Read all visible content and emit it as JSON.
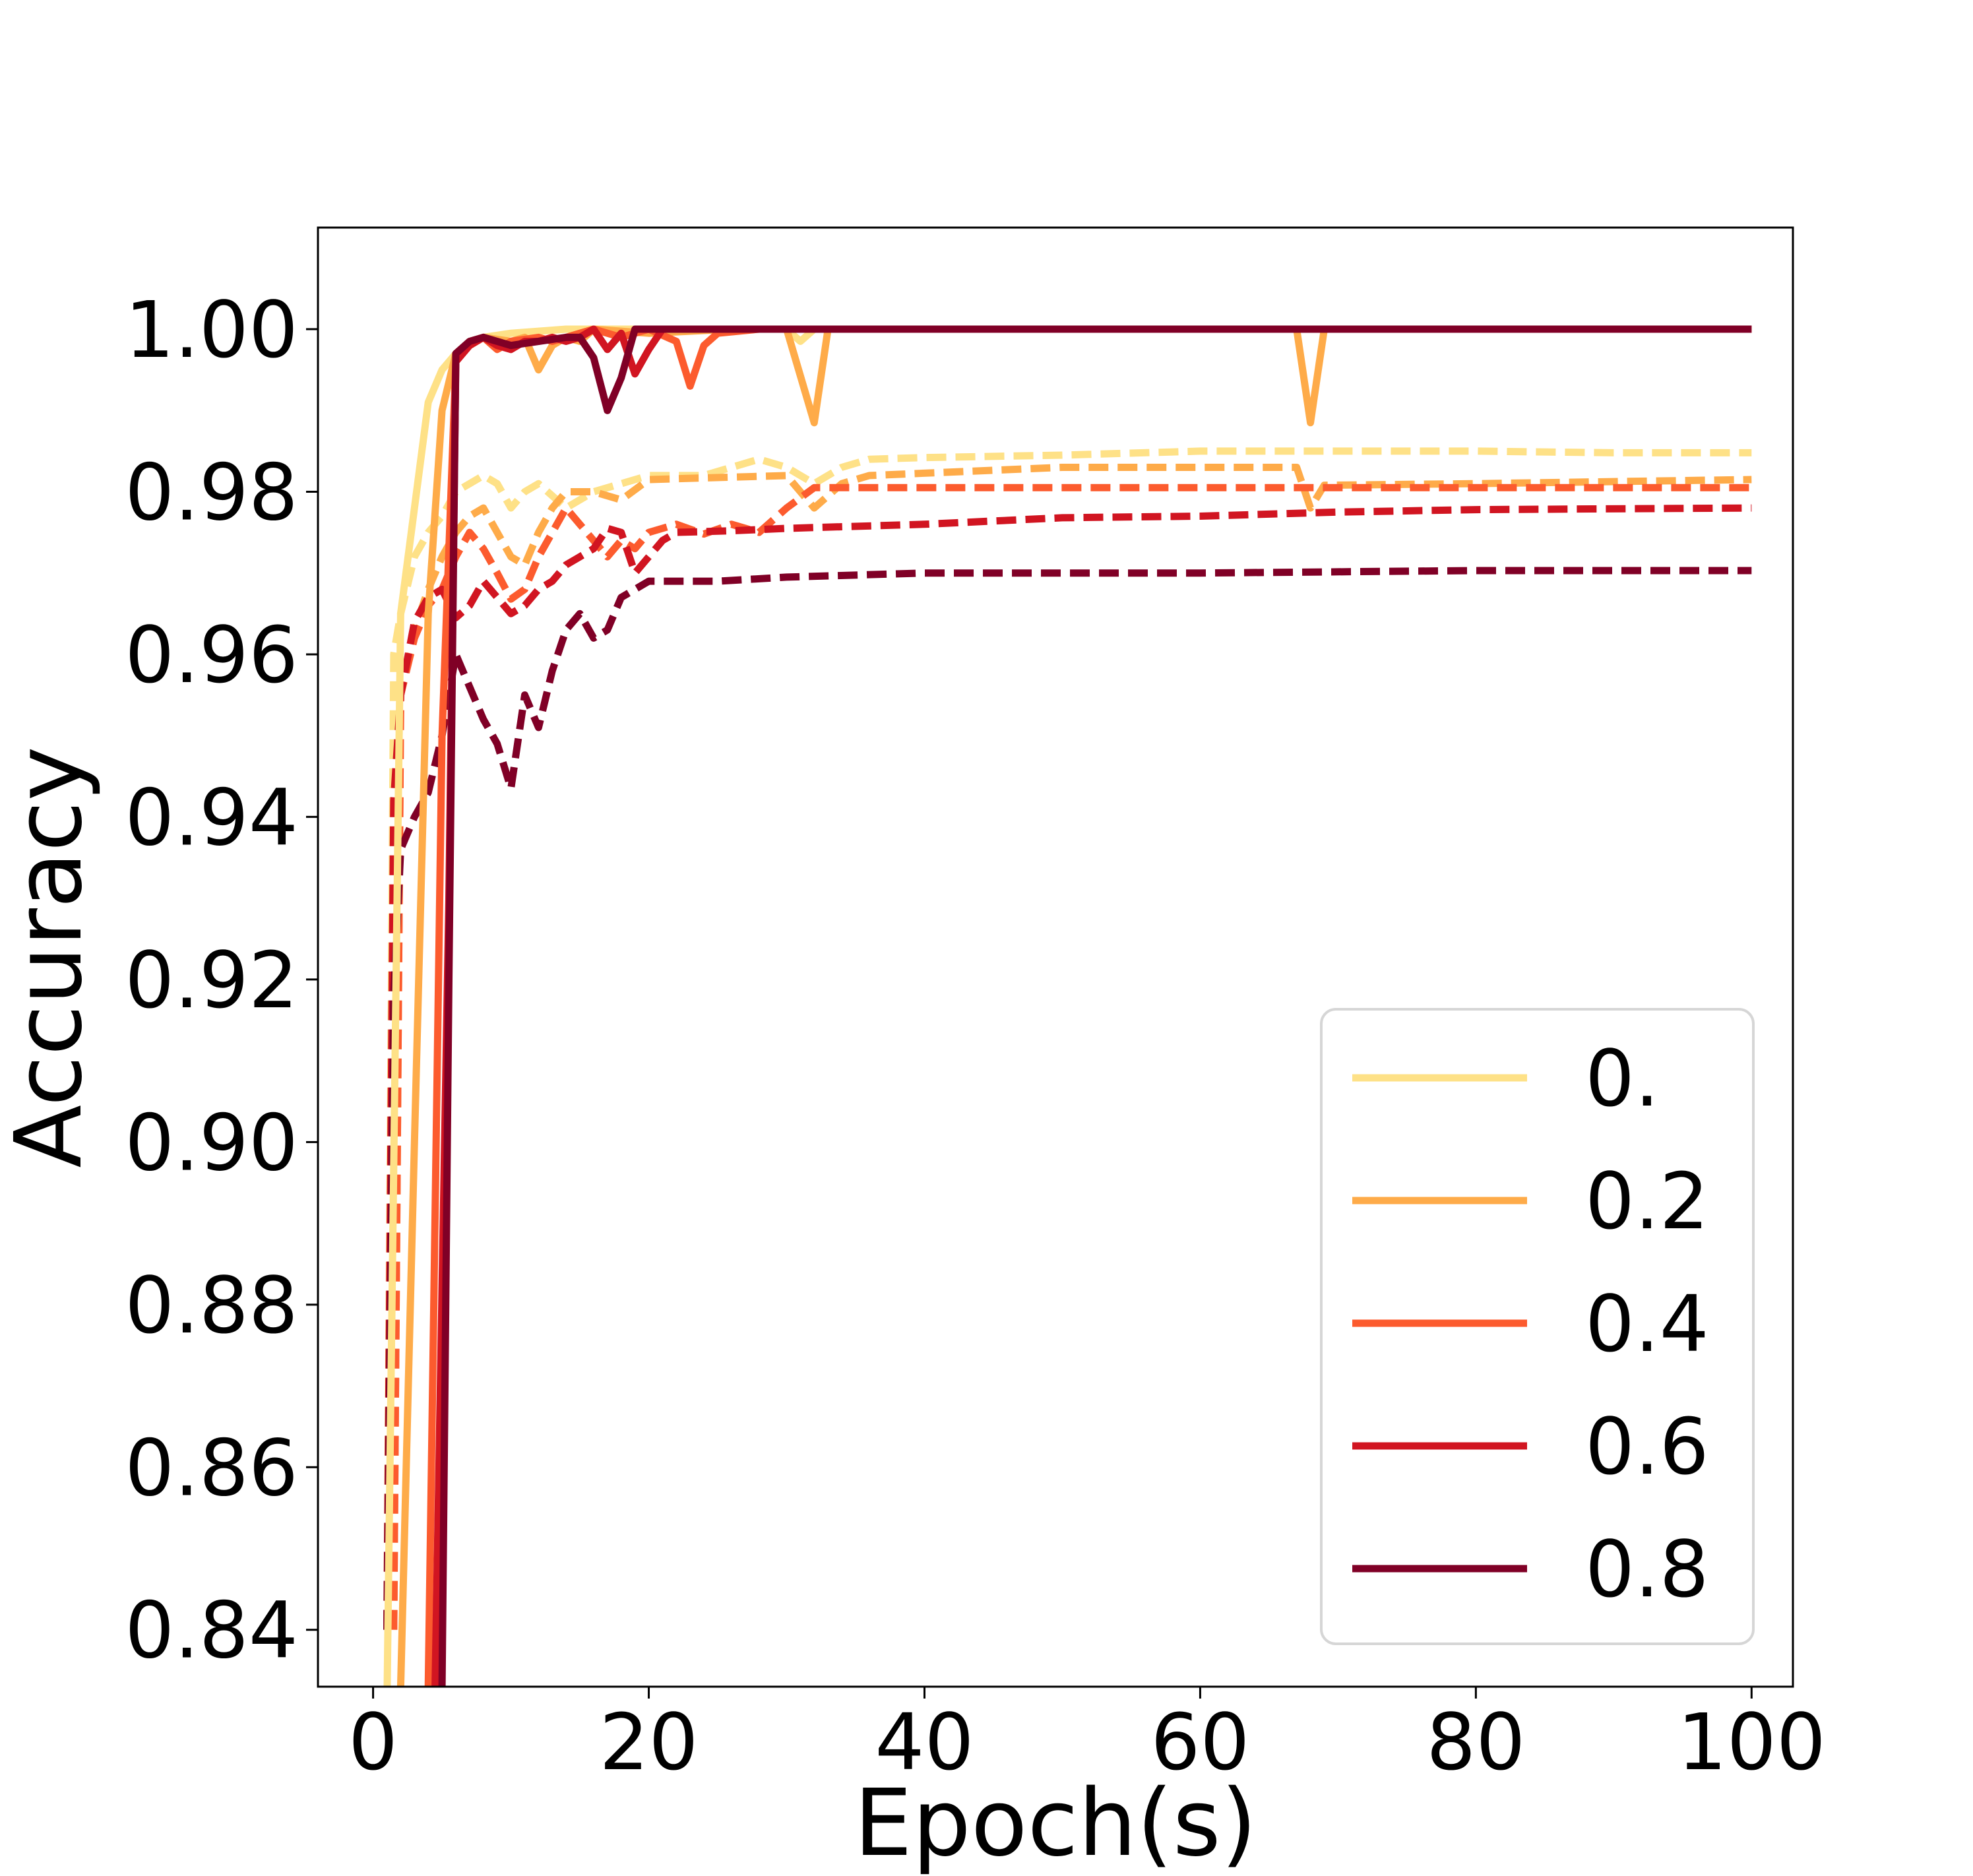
{
  "chart_data": {
    "type": "line",
    "title": "",
    "xlabel": "Epoch(s)",
    "ylabel": "Accuracy",
    "xlim": [
      -4,
      103
    ],
    "ylim": [
      0.833,
      1.0125
    ],
    "xticks": [
      0,
      20,
      40,
      60,
      80,
      100
    ],
    "xtick_labels": [
      "0",
      "20",
      "40",
      "60",
      "80",
      "100"
    ],
    "yticks": [
      0.84,
      0.86,
      0.88,
      0.9,
      0.92,
      0.94,
      0.96,
      0.98,
      1.0
    ],
    "ytick_labels": [
      "0.84",
      "0.86",
      "0.88",
      "0.90",
      "0.92",
      "0.94",
      "0.96",
      "0.98",
      "1.00"
    ],
    "grid": false,
    "legend_position": "lower-right",
    "legend_note": "solid = training accuracy, dashed = test accuracy (legend shows solid only)",
    "series": [
      {
        "name": "0.",
        "color": "#fee187",
        "train": [
          [
            1,
            0.83
          ],
          [
            2,
            0.965
          ],
          [
            3,
            0.978
          ],
          [
            4,
            0.991
          ],
          [
            5,
            0.995
          ],
          [
            6,
            0.997
          ],
          [
            7,
            0.998
          ],
          [
            8,
            0.999
          ],
          [
            10,
            0.9995
          ],
          [
            14,
            1.0
          ],
          [
            18,
            1.0
          ],
          [
            30,
            1.0
          ],
          [
            31,
            0.9985
          ],
          [
            32,
            1.0
          ],
          [
            100,
            1.0
          ]
        ],
        "test": [
          [
            1,
            0.84
          ],
          [
            1.5,
            0.96
          ],
          [
            2,
            0.965
          ],
          [
            3,
            0.972
          ],
          [
            4,
            0.975
          ],
          [
            5,
            0.977
          ],
          [
            6,
            0.98
          ],
          [
            7,
            0.981
          ],
          [
            8,
            0.982
          ],
          [
            9,
            0.981
          ],
          [
            10,
            0.978
          ],
          [
            11,
            0.98
          ],
          [
            12,
            0.981
          ],
          [
            14,
            0.978
          ],
          [
            16,
            0.98
          ],
          [
            18,
            0.981
          ],
          [
            20,
            0.982
          ],
          [
            24,
            0.982
          ],
          [
            28,
            0.984
          ],
          [
            30,
            0.983
          ],
          [
            32,
            0.981
          ],
          [
            34,
            0.983
          ],
          [
            36,
            0.984
          ],
          [
            40,
            0.9842
          ],
          [
            50,
            0.9845
          ],
          [
            60,
            0.985
          ],
          [
            70,
            0.985
          ],
          [
            80,
            0.985
          ],
          [
            90,
            0.9848
          ],
          [
            100,
            0.9848
          ]
        ]
      },
      {
        "name": "0.2",
        "color": "#feab49",
        "train": [
          [
            2,
            0.833
          ],
          [
            3,
            0.9
          ],
          [
            4,
            0.965
          ],
          [
            5,
            0.99
          ],
          [
            6,
            0.997
          ],
          [
            7,
            0.9985
          ],
          [
            8,
            0.999
          ],
          [
            10,
            0.9985
          ],
          [
            11,
            0.999
          ],
          [
            12,
            0.995
          ],
          [
            13,
            0.998
          ],
          [
            14,
            0.999
          ],
          [
            15,
            0.9985
          ],
          [
            16,
            1.0
          ],
          [
            20,
            0.9995
          ],
          [
            26,
            1.0
          ],
          [
            30,
            1.0
          ],
          [
            32,
            0.9885
          ],
          [
            33,
            1.0
          ],
          [
            67,
            1.0
          ],
          [
            68,
            0.9885
          ],
          [
            69,
            1.0
          ],
          [
            100,
            1.0
          ]
        ],
        "test": [
          [
            1.5,
            0.84
          ],
          [
            2,
            0.955
          ],
          [
            3,
            0.963
          ],
          [
            4,
            0.968
          ],
          [
            5,
            0.972
          ],
          [
            6,
            0.975
          ],
          [
            7,
            0.977
          ],
          [
            8,
            0.978
          ],
          [
            9,
            0.975
          ],
          [
            10,
            0.972
          ],
          [
            11,
            0.971
          ],
          [
            12,
            0.975
          ],
          [
            13,
            0.978
          ],
          [
            14,
            0.98
          ],
          [
            16,
            0.98
          ],
          [
            18,
            0.979
          ],
          [
            20,
            0.9815
          ],
          [
            30,
            0.982
          ],
          [
            32,
            0.978
          ],
          [
            34,
            0.981
          ],
          [
            36,
            0.982
          ],
          [
            50,
            0.983
          ],
          [
            60,
            0.983
          ],
          [
            67,
            0.983
          ],
          [
            68,
            0.978
          ],
          [
            69,
            0.9808
          ],
          [
            80,
            0.981
          ],
          [
            100,
            0.9815
          ]
        ]
      },
      {
        "name": "0.4",
        "color": "#fc5b2e",
        "train": [
          [
            4,
            0.833
          ],
          [
            5,
            0.95
          ],
          [
            6,
            0.996
          ],
          [
            7,
            0.998
          ],
          [
            8,
            0.999
          ],
          [
            9,
            0.9975
          ],
          [
            10,
            0.9985
          ],
          [
            12,
            0.999
          ],
          [
            13,
            0.9985
          ],
          [
            14,
            0.999
          ],
          [
            16,
            1.0
          ],
          [
            18,
            0.999
          ],
          [
            20,
            1.0
          ],
          [
            22,
            0.9985
          ],
          [
            23,
            0.993
          ],
          [
            24,
            0.998
          ],
          [
            25,
            0.9995
          ],
          [
            28,
            1.0
          ],
          [
            30,
            1.0
          ],
          [
            100,
            1.0
          ]
        ],
        "test": [
          [
            1.5,
            0.84
          ],
          [
            2,
            0.955
          ],
          [
            3,
            0.962
          ],
          [
            4,
            0.966
          ],
          [
            5,
            0.968
          ],
          [
            6,
            0.972
          ],
          [
            7,
            0.975
          ],
          [
            8,
            0.973
          ],
          [
            9,
            0.97
          ],
          [
            10,
            0.9668
          ],
          [
            11,
            0.968
          ],
          [
            12,
            0.972
          ],
          [
            13,
            0.975
          ],
          [
            14,
            0.978
          ],
          [
            15,
            0.976
          ],
          [
            16,
            0.974
          ],
          [
            17,
            0.972
          ],
          [
            18,
            0.974
          ],
          [
            19,
            0.973
          ],
          [
            20,
            0.975
          ],
          [
            22,
            0.976
          ],
          [
            24,
            0.9748
          ],
          [
            26,
            0.976
          ],
          [
            28,
            0.975
          ],
          [
            30,
            0.978
          ],
          [
            32,
            0.9805
          ],
          [
            40,
            0.9805
          ],
          [
            60,
            0.9805
          ],
          [
            80,
            0.9805
          ],
          [
            100,
            0.9805
          ]
        ]
      },
      {
        "name": "0.6",
        "color": "#d11521",
        "train": [
          [
            4.5,
            0.833
          ],
          [
            5.5,
            0.93
          ],
          [
            6,
            0.996
          ],
          [
            7,
            0.998
          ],
          [
            8,
            0.999
          ],
          [
            9,
            0.998
          ],
          [
            10,
            0.9975
          ],
          [
            11,
            0.9985
          ],
          [
            12,
            0.9985
          ],
          [
            13,
            0.999
          ],
          [
            14,
            0.9985
          ],
          [
            15,
            0.999
          ],
          [
            16,
            1.0
          ],
          [
            17,
            0.9975
          ],
          [
            18,
            0.9995
          ],
          [
            19,
            0.9945
          ],
          [
            20,
            0.9975
          ],
          [
            21,
            1.0
          ],
          [
            100,
            1.0
          ]
        ],
        "test": [
          [
            1,
            0.84
          ],
          [
            1.5,
            0.942
          ],
          [
            2,
            0.955
          ],
          [
            3,
            0.964
          ],
          [
            4,
            0.967
          ],
          [
            5,
            0.968
          ],
          [
            6,
            0.9645
          ],
          [
            7,
            0.966
          ],
          [
            8,
            0.969
          ],
          [
            9,
            0.967
          ],
          [
            10,
            0.965
          ],
          [
            11,
            0.966
          ],
          [
            12,
            0.968
          ],
          [
            13,
            0.969
          ],
          [
            14,
            0.971
          ],
          [
            15,
            0.972
          ],
          [
            16,
            0.973
          ],
          [
            17,
            0.9755
          ],
          [
            18,
            0.975
          ],
          [
            19,
            0.97
          ],
          [
            20,
            0.972
          ],
          [
            21,
            0.974
          ],
          [
            22,
            0.975
          ],
          [
            26,
            0.9752
          ],
          [
            30,
            0.9755
          ],
          [
            40,
            0.976
          ],
          [
            50,
            0.9768
          ],
          [
            60,
            0.977
          ],
          [
            70,
            0.9775
          ],
          [
            80,
            0.9778
          ],
          [
            100,
            0.978
          ]
        ]
      },
      {
        "name": "0.8",
        "color": "#800026",
        "train": [
          [
            5,
            0.833
          ],
          [
            5.5,
            0.92
          ],
          [
            6,
            0.997
          ],
          [
            7,
            0.9985
          ],
          [
            8,
            0.999
          ],
          [
            9,
            0.9985
          ],
          [
            10,
            0.998
          ],
          [
            12,
            0.9985
          ],
          [
            14,
            0.999
          ],
          [
            15,
            0.999
          ],
          [
            16,
            0.9965
          ],
          [
            17,
            0.99
          ],
          [
            18,
            0.994
          ],
          [
            19,
            1.0
          ],
          [
            100,
            1.0
          ]
        ],
        "test": [
          [
            1,
            0.84
          ],
          [
            1.5,
            0.918
          ],
          [
            2,
            0.936
          ],
          [
            3,
            0.94
          ],
          [
            4,
            0.943
          ],
          [
            5,
            0.95
          ],
          [
            6,
            0.96
          ],
          [
            7,
            0.956
          ],
          [
            8,
            0.952
          ],
          [
            9,
            0.949
          ],
          [
            10,
            0.9435
          ],
          [
            11,
            0.955
          ],
          [
            12,
            0.951
          ],
          [
            13,
            0.958
          ],
          [
            14,
            0.963
          ],
          [
            15,
            0.965
          ],
          [
            16,
            0.962
          ],
          [
            17,
            0.963
          ],
          [
            18,
            0.967
          ],
          [
            19,
            0.968
          ],
          [
            20,
            0.969
          ],
          [
            25,
            0.969
          ],
          [
            30,
            0.9695
          ],
          [
            40,
            0.97
          ],
          [
            60,
            0.97
          ],
          [
            80,
            0.9703
          ],
          [
            100,
            0.9703
          ]
        ]
      }
    ]
  }
}
